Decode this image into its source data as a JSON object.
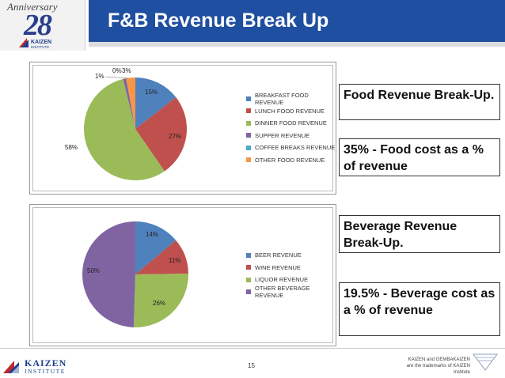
{
  "header": {
    "title": "F&B Revenue Break Up",
    "anniversary_label": "Anniversary",
    "anniversary_number": "28",
    "logo_text": "KAIZEN",
    "logo_subtext": "INSTITUTE"
  },
  "colors": {
    "title_blue": "#1f4fa0",
    "breakfast": "#4f81bd",
    "lunch": "#c0504d",
    "dinner": "#9bbb59",
    "supper": "#8064a2",
    "coffee": "#4bacc6",
    "other": "#f79646"
  },
  "chart_data": [
    {
      "type": "pie",
      "title": "Food Revenue",
      "categories": [
        "BREAKFAST FOOD REVENUE",
        "LUNCH FOOD REVENUE",
        "DINNER FOOD REVENUE",
        "SUPPER REVENUE",
        "COFFEE BREAKS REVENUE",
        "OTHER FOOD REVENUE"
      ],
      "values": [
        15,
        27,
        58,
        1,
        0,
        3
      ],
      "labels": [
        "15%",
        "27%",
        "58%",
        "1%",
        "0%",
        "3%"
      ],
      "colors": [
        "#4f81bd",
        "#c0504d",
        "#9bbb59",
        "#8064a2",
        "#4bacc6",
        "#f79646"
      ],
      "legend_position": "right"
    },
    {
      "type": "pie",
      "title": "Beverage Revenue",
      "categories": [
        "BEER REVENUE",
        "WINE REVENUE",
        "LIQUOR REVENUE",
        "OTHER BEVERAGE REVENUE"
      ],
      "values": [
        14,
        11,
        26,
        50
      ],
      "labels": [
        "14%",
        "11%",
        "26%",
        "50%"
      ],
      "colors": [
        "#4f81bd",
        "#c0504d",
        "#9bbb59",
        "#8064a2"
      ],
      "legend_position": "right"
    }
  ],
  "callouts": {
    "food_heading": "Food Revenue Break-Up.",
    "food_cost": "35% - Food cost as a % of revenue",
    "bev_heading": "Beverage Revenue Break-Up.",
    "bev_cost": "19.5% - Beverage cost as a % of revenue"
  },
  "footer": {
    "logo_text": "KAIZEN",
    "logo_subtext": "INSTITUTE",
    "page_number": "15",
    "trademark_line1": "KAIZEN and GEMBAKAIZEN",
    "trademark_line2": "are the trademarks of KAIZEN Institute"
  }
}
